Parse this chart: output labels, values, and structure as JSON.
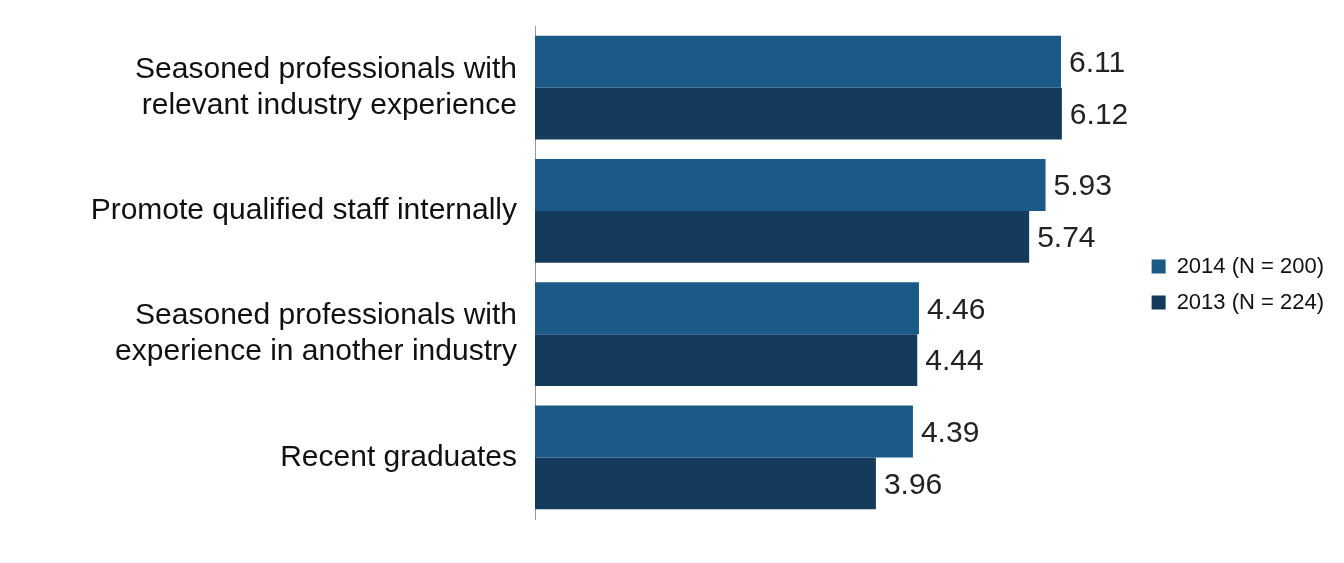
{
  "chart_data": {
    "type": "bar",
    "orientation": "horizontal",
    "categories": [
      "Seasoned professionals with relevant industry experience",
      "Promote qualified staff internally",
      "Seasoned professionals with experience in another industry",
      "Recent graduates"
    ],
    "series": [
      {
        "name": "2014 (N = 200)",
        "color": "#1b5a87",
        "values": [
          6.11,
          5.93,
          4.46,
          4.39
        ]
      },
      {
        "name": "2013 (N = 224)",
        "color": "#143a5c",
        "values": [
          6.12,
          5.74,
          4.44,
          3.96
        ]
      }
    ],
    "data_labels": true,
    "legend": "right",
    "grid": false,
    "tick_labels": "y"
  }
}
